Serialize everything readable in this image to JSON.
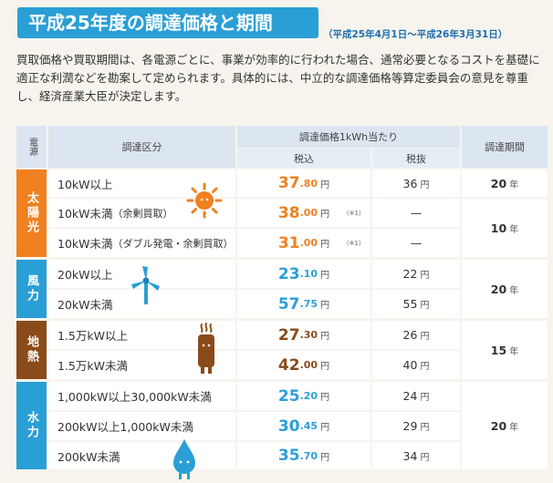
{
  "header": {
    "title": "平成25年度の調達価格と期間",
    "period": "（平成25年4月1日～平成26年3月31日）"
  },
  "intro": "買取価格や買取期間は、各電源ごとに、事業が効率的に行われた場合、通常必要となるコストを基礎に適正な利潤などを勘案して定められます。具体的には、中立的な調達価格等算定委員会の意見を尊重し、経済産業大臣が決定します。",
  "table": {
    "headers": {
      "source": "電源",
      "category": "調達区分",
      "price": "調達価格1kWh当たり",
      "tax_in": "税込",
      "tax_out": "税抜",
      "period": "調達期間"
    },
    "unit_yen": "円",
    "unit_year": "年",
    "note": "（※1）",
    "dash": "—",
    "groups": {
      "solar": {
        "label": "太陽光",
        "rows": [
          {
            "category": "10kW以上",
            "category_extra": "",
            "price_int": "37",
            "price_dec": ".80",
            "tax_out": "36",
            "note": false
          },
          {
            "category": "10kW未満",
            "category_extra": "（余剰買取）",
            "price_int": "38",
            "price_dec": ".00",
            "tax_out": "—",
            "note": true
          },
          {
            "category": "10kW未満",
            "category_extra": "（ダブル発電・余剰買取）",
            "price_int": "31",
            "price_dec": ".00",
            "tax_out": "—",
            "note": true
          }
        ],
        "periods": [
          "20",
          "10"
        ]
      },
      "wind": {
        "label": "風力",
        "rows": [
          {
            "category": "20kW以上",
            "price_int": "23",
            "price_dec": ".10",
            "tax_out": "22"
          },
          {
            "category": "20kW未満",
            "price_int": "57",
            "price_dec": ".75",
            "tax_out": "55"
          }
        ],
        "period": "20"
      },
      "geothermal": {
        "label": "地熱",
        "rows": [
          {
            "category": "1.5万kW以上",
            "price_int": "27",
            "price_dec": ".30",
            "tax_out": "26"
          },
          {
            "category": "1.5万kW未満",
            "price_int": "42",
            "price_dec": ".00",
            "tax_out": "40"
          }
        ],
        "period": "15"
      },
      "hydro": {
        "label": "水力",
        "rows": [
          {
            "category": "1,000kW以上30,000kW未満",
            "price_int": "25",
            "price_dec": ".20",
            "tax_out": "24"
          },
          {
            "category": "200kW以上1,000kW未満",
            "price_int": "30",
            "price_dec": ".45",
            "tax_out": "29"
          },
          {
            "category": "200kW未満",
            "price_int": "35",
            "price_dec": ".70",
            "tax_out": "34"
          }
        ],
        "period": "20"
      }
    }
  },
  "colors": {
    "solar": "#f08020",
    "wind": "#2a9fd6",
    "geothermal": "#8a4b1a",
    "hydro": "#2a9fd6",
    "title_bar": "#2a9fd6"
  },
  "icons": [
    "sun-icon",
    "wind-turbine-icon",
    "geothermal-icon",
    "water-drop-icon"
  ]
}
